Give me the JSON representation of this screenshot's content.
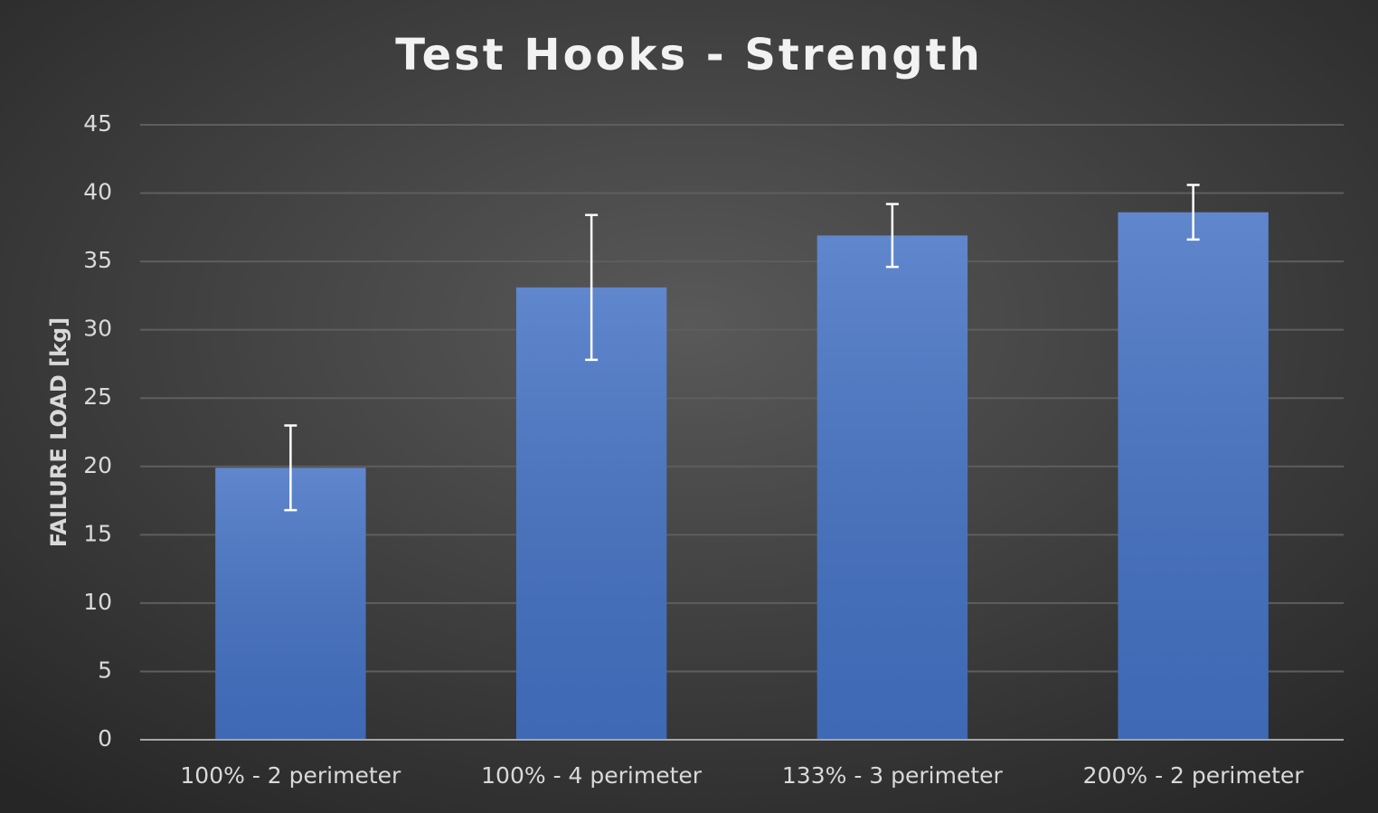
{
  "chart_data": {
    "type": "bar",
    "title": "Test Hooks - Strength",
    "y_label": "FAILURE LOAD [kg]",
    "categories": [
      "100% - 2 perimeter",
      "100% - 4 perimeter",
      "133% - 3 perimeter",
      "200% - 2 perimeter"
    ],
    "values": [
      19.9,
      33.1,
      36.9,
      38.6
    ],
    "errors": [
      3.1,
      5.3,
      2.3,
      2.0
    ],
    "color": "#4472c4",
    "error_color": "#ffffff",
    "ylim": [
      0,
      45
    ],
    "yticks": [
      0,
      5,
      10,
      15,
      20,
      25,
      30,
      35,
      40,
      45
    ],
    "grid": true
  }
}
